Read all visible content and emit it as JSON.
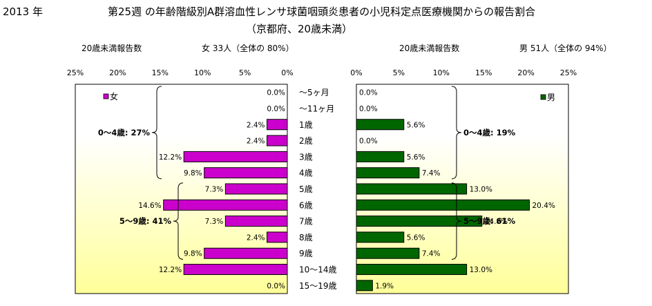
{
  "header": {
    "year": "2013 年",
    "title": "第25週 の年齢階級別A群溶血性レンサ球菌咽頭炎患者の小児科定点医療機関からの報告割合",
    "subtitle": "（京都府、20歳未満）"
  },
  "female_meta": {
    "count_label": "20歳未満報告数",
    "summary": "女  33人（全体の  80%）"
  },
  "male_meta": {
    "count_label": "20歳未満報告数",
    "summary": "男  51人（全体の  94%）"
  },
  "colors": {
    "female": "#cc00cc",
    "male": "#006600",
    "plot_bg_top": "#ffffff",
    "plot_bg_bottom": "#ffff99"
  },
  "chart_data": {
    "type": "bar",
    "orientation": "horizontal-butterfly",
    "categories": [
      "～5ヶ月",
      "～11ヶ月",
      "1歳",
      "2歳",
      "3歳",
      "4歳",
      "5歳",
      "6歳",
      "7歳",
      "8歳",
      "9歳",
      "10～14歳",
      "15～19歳"
    ],
    "xlim": [
      0,
      25
    ],
    "ticks": [
      "0%",
      "5%",
      "10%",
      "15%",
      "20%",
      "25%"
    ],
    "tick_values": [
      0,
      5,
      10,
      15,
      20,
      25
    ],
    "series": [
      {
        "name": "女",
        "values": [
          0.0,
          0.0,
          2.4,
          2.4,
          12.2,
          9.8,
          7.3,
          14.6,
          7.3,
          2.4,
          9.8,
          12.2,
          0.0
        ],
        "labels": [
          "0.0%",
          "0.0%",
          "2.4%",
          "2.4%",
          "12.2%",
          "9.8%",
          "7.3%",
          "14.6%",
          "7.3%",
          "2.4%",
          "9.8%",
          "12.2%",
          "0.0%"
        ]
      },
      {
        "name": "男",
        "values": [
          0.0,
          0.0,
          5.6,
          0.0,
          5.6,
          7.4,
          13.0,
          20.4,
          14.8,
          5.6,
          7.4,
          13.0,
          1.9
        ],
        "labels": [
          "0.0%",
          "0.0%",
          "5.6%",
          "0.0%",
          "5.6%",
          "7.4%",
          "13.0%",
          "20.4%",
          "14.8%",
          "5.6%",
          "7.4%",
          "13.0%",
          "1.9%"
        ]
      }
    ],
    "group_annotations": {
      "female": [
        {
          "label": "0～4歳:  27%",
          "from": 0,
          "to": 5
        },
        {
          "label": "5～9歳:  41%",
          "from": 6,
          "to": 10
        }
      ],
      "male": [
        {
          "label": "0～4歳:  19%",
          "from": 0,
          "to": 5
        },
        {
          "label": "5～9歳:  61%",
          "from": 6,
          "to": 10
        }
      ]
    },
    "legend_position": "top"
  }
}
